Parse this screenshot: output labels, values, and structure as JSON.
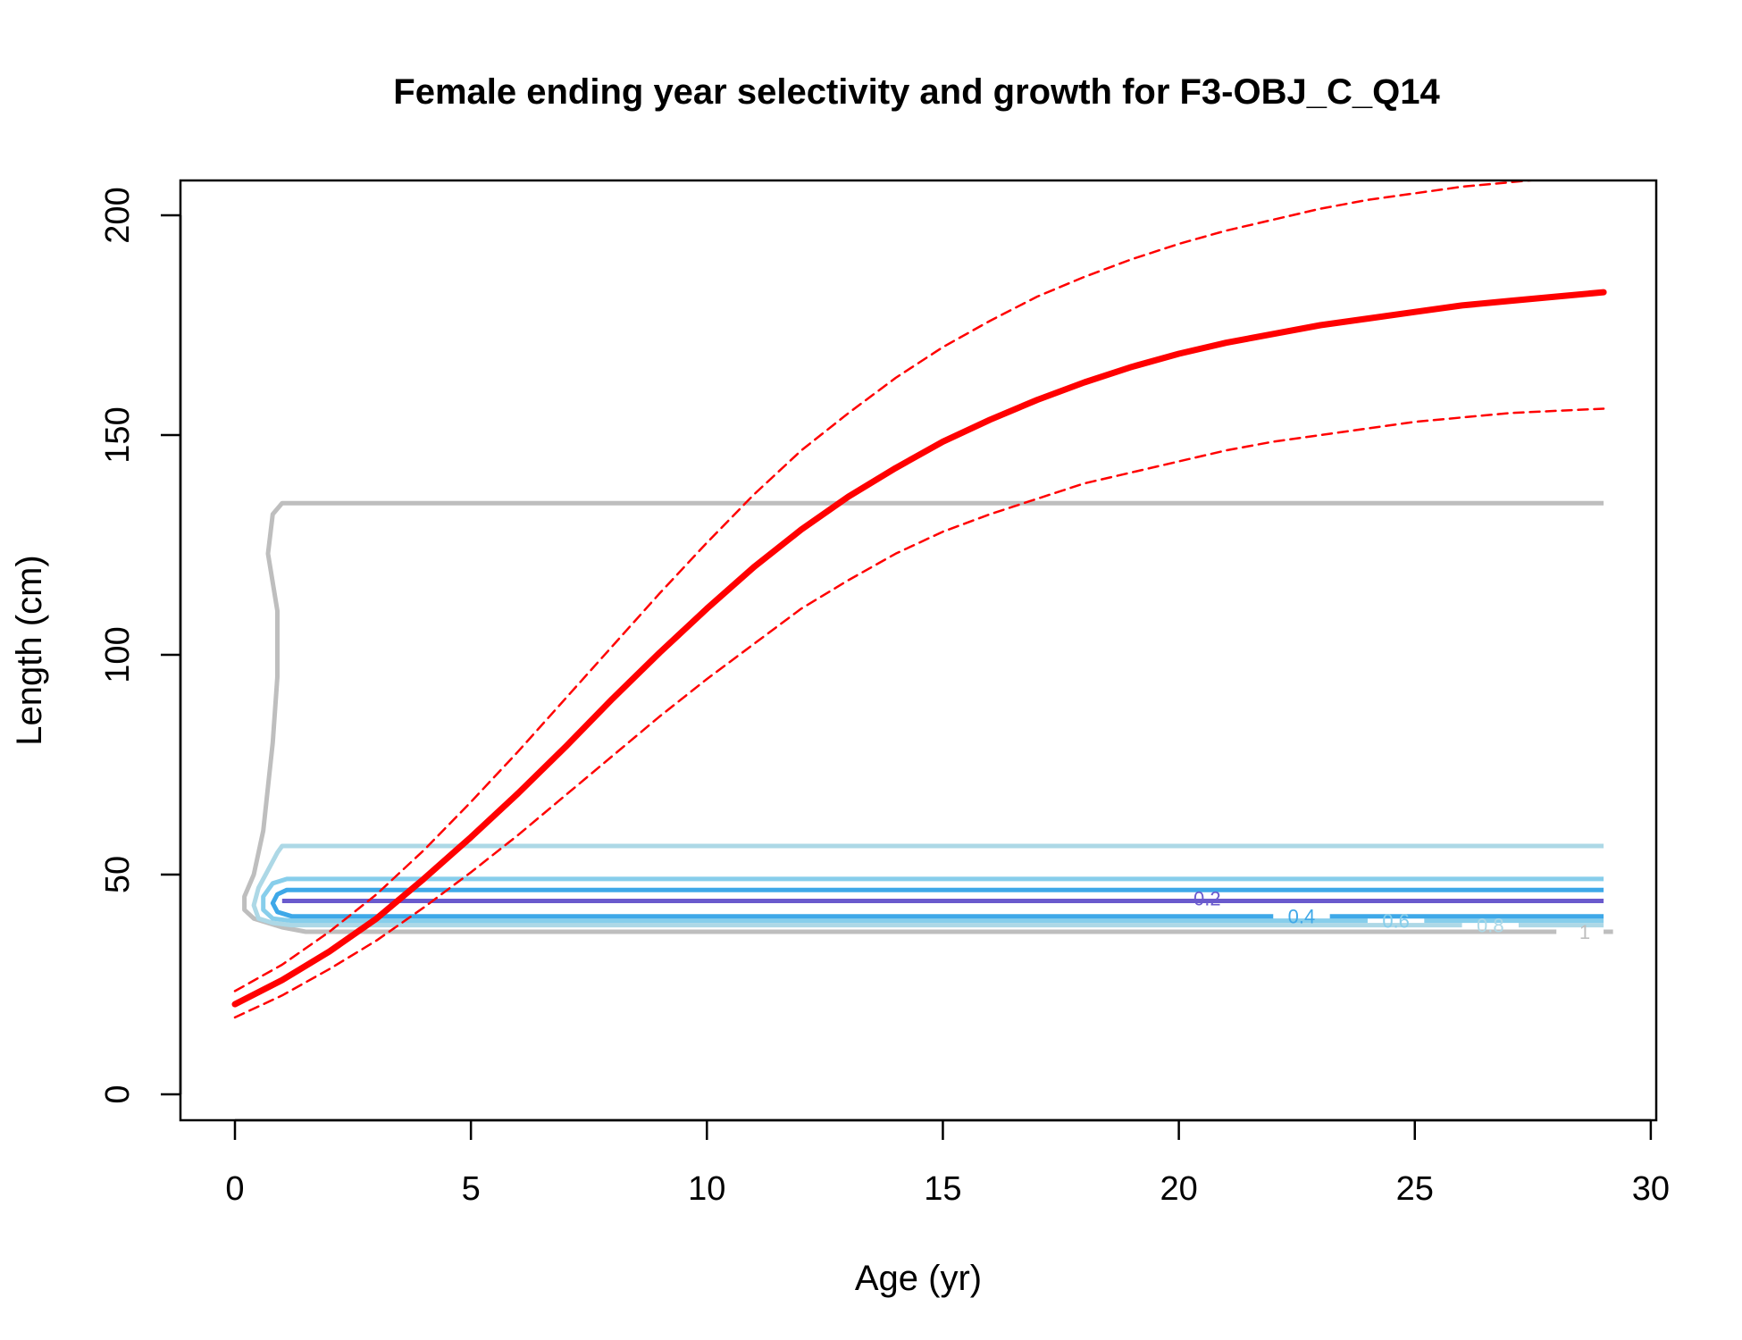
{
  "chart_data": {
    "type": "line",
    "title": "Female ending year selectivity and growth for F3-OBJ_C_Q14",
    "xlabel": "Age (yr)",
    "ylabel": "Length (cm)",
    "xlim": [
      0,
      30
    ],
    "ylim": [
      0,
      210
    ],
    "x_ticks": [
      0,
      5,
      10,
      15,
      20,
      25,
      30
    ],
    "y_ticks": [
      0,
      50,
      100,
      150,
      200
    ],
    "grid": false,
    "legend": "none",
    "series": [
      {
        "role": "mean",
        "style": "solid",
        "color": "#ff0000",
        "x": [
          0,
          1,
          2,
          3,
          4,
          5,
          6,
          7,
          8,
          9,
          10,
          11,
          12,
          13,
          14,
          15,
          16,
          17,
          18,
          19,
          20,
          21,
          22,
          23,
          24,
          25,
          26,
          27,
          28,
          29
        ],
        "y": [
          20.5,
          26,
          32.5,
          40,
          49,
          58.5,
          68.5,
          79,
          90,
          100.5,
          110.5,
          120,
          128.5,
          136,
          142.5,
          148.5,
          153.5,
          158,
          162,
          165.5,
          168.5,
          171,
          173,
          175,
          176.5,
          178,
          179.5,
          180.5,
          181.5,
          182.5
        ]
      },
      {
        "role": "upper interval",
        "style": "dashed",
        "color": "#ff0000",
        "x": [
          0,
          1,
          2,
          3,
          4,
          5,
          6,
          7,
          8,
          9,
          10,
          11,
          12,
          13,
          14,
          15,
          16,
          17,
          18,
          19,
          20,
          21,
          22,
          23,
          24,
          25,
          26,
          27,
          28,
          29
        ],
        "y": [
          23.5,
          29.5,
          37,
          45.5,
          55.5,
          66.5,
          78,
          90,
          102,
          114,
          125.5,
          136.5,
          146.5,
          155,
          163,
          170,
          176,
          181.5,
          186,
          190,
          193.5,
          196.5,
          199,
          201.5,
          203.5,
          205,
          206.5,
          207.5,
          208.5,
          209.5
        ]
      },
      {
        "role": "lower interval",
        "style": "dashed",
        "color": "#ff0000",
        "x": [
          0,
          1,
          2,
          3,
          4,
          5,
          6,
          7,
          8,
          9,
          10,
          11,
          12,
          13,
          14,
          15,
          16,
          17,
          18,
          19,
          20,
          21,
          22,
          23,
          24,
          25,
          26,
          27,
          28,
          29
        ],
        "y": [
          17.5,
          22.5,
          28.5,
          35,
          42.5,
          50.5,
          59,
          68,
          77,
          86,
          94.5,
          102.5,
          110.5,
          117,
          123,
          128,
          132,
          135.5,
          139,
          141.5,
          144,
          146.5,
          148.5,
          150,
          151.5,
          153,
          154,
          155,
          155.5,
          156
        ]
      }
    ],
    "contours": [
      {
        "level": "0.2",
        "color": "#bebebe",
        "top": 134.5,
        "bottom": 37,
        "bottom_end": 28,
        "left_outline": [
          [
            1,
            134.5
          ],
          [
            0.8,
            132
          ],
          [
            0.7,
            123
          ],
          [
            0.9,
            110
          ],
          [
            0.9,
            95
          ],
          [
            0.8,
            80
          ],
          [
            0.7,
            70
          ],
          [
            0.6,
            60
          ],
          [
            0.4,
            50
          ],
          [
            0.2,
            45
          ],
          [
            0.2,
            42
          ],
          [
            0.4,
            40
          ],
          [
            1,
            38
          ],
          [
            1.5,
            37
          ]
        ]
      },
      {
        "level": "0.4",
        "color": "#add8e6",
        "top": 56.5,
        "bottom": 38.5,
        "bottom_end": 26,
        "left_outline": [
          [
            1,
            56.5
          ],
          [
            0.9,
            55
          ],
          [
            0.7,
            51
          ],
          [
            0.5,
            47
          ],
          [
            0.4,
            43
          ],
          [
            0.5,
            40
          ],
          [
            0.8,
            39
          ],
          [
            1.2,
            38.5
          ]
        ]
      },
      {
        "level": "0.6",
        "color": "#87ceeb",
        "top": 49,
        "bottom": 39.5,
        "bottom_end": 24,
        "left_outline": [
          [
            1.1,
            49
          ],
          [
            0.8,
            48
          ],
          [
            0.6,
            45
          ],
          [
            0.6,
            42
          ],
          [
            0.8,
            40
          ],
          [
            1.2,
            39.5
          ]
        ]
      },
      {
        "level": "0.8",
        "color": "#3ea8e8",
        "top": 46.5,
        "bottom": 40.5,
        "bottom_end": 22,
        "left_outline": [
          [
            1.1,
            46.5
          ],
          [
            0.9,
            45.5
          ],
          [
            0.8,
            43.5
          ],
          [
            0.9,
            41.5
          ],
          [
            1.2,
            40.5
          ]
        ]
      },
      {
        "level": "1",
        "color": "#6a5acd",
        "top": 44,
        "bottom": 44,
        "bottom_end": 20.5,
        "left_outline": [
          [
            1,
            44
          ]
        ]
      }
    ],
    "contour_labels": [
      "1",
      "0.8",
      "0.6",
      "0.4",
      "0.2"
    ]
  }
}
